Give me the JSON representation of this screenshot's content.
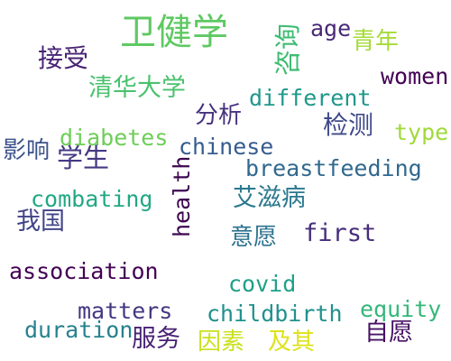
{
  "words": [
    {
      "id": "weijianxue",
      "text": "卫健学",
      "color": "#5ec962"
    },
    {
      "id": "zixun",
      "text": "咨询",
      "color": "#3fbc73"
    },
    {
      "id": "age",
      "text": "age",
      "color": "#482878"
    },
    {
      "id": "qingnian",
      "text": "青年",
      "color": "#a5db36"
    },
    {
      "id": "jieshou",
      "text": "接受",
      "color": "#482475"
    },
    {
      "id": "women",
      "text": "women",
      "color": "#440154"
    },
    {
      "id": "qinghua",
      "text": "清华大学",
      "color": "#4ac16d"
    },
    {
      "id": "different",
      "text": "different",
      "color": "#1f988b"
    },
    {
      "id": "fenxi",
      "text": "分析",
      "color": "#46327e"
    },
    {
      "id": "jiance",
      "text": "检测",
      "color": "#3e4989"
    },
    {
      "id": "type",
      "text": "type",
      "color": "#a0da39"
    },
    {
      "id": "diabetes",
      "text": "diabetes",
      "color": "#6ece58"
    },
    {
      "id": "chinese",
      "text": "chinese",
      "color": "#365c8d"
    },
    {
      "id": "yingxiang",
      "text": "影响",
      "color": "#3b528b"
    },
    {
      "id": "xuesheng",
      "text": "学生",
      "color": "#443983"
    },
    {
      "id": "breastfeeding",
      "text": "breastfeeding",
      "color": "#31688e"
    },
    {
      "id": "health",
      "text": "health",
      "color": "#3e0751"
    },
    {
      "id": "combating",
      "text": "combating",
      "color": "#22a884"
    },
    {
      "id": "aizibing",
      "text": "艾滋病",
      "color": "#2a788e"
    },
    {
      "id": "woguo",
      "text": "我国",
      "color": "#414487"
    },
    {
      "id": "yiyuan",
      "text": "意愿",
      "color": "#2c728e"
    },
    {
      "id": "first",
      "text": "first",
      "color": "#472d7b"
    },
    {
      "id": "association",
      "text": "association",
      "color": "#440154"
    },
    {
      "id": "covid",
      "text": "covid",
      "color": "#1fa088"
    },
    {
      "id": "matters",
      "text": "matters",
      "color": "#453781"
    },
    {
      "id": "childbirth",
      "text": "childbirth",
      "color": "#21918c"
    },
    {
      "id": "equity",
      "text": "equity",
      "color": "#35b779"
    },
    {
      "id": "duration",
      "text": "duration",
      "color": "#26828e"
    },
    {
      "id": "fuwu",
      "text": "服务",
      "color": "#482173"
    },
    {
      "id": "yinsu",
      "text": "因素",
      "color": "#cae11f"
    },
    {
      "id": "jiqi",
      "text": "及其",
      "color": "#dde318"
    },
    {
      "id": "ziyuan",
      "text": "自愿",
      "color": "#471164"
    }
  ]
}
